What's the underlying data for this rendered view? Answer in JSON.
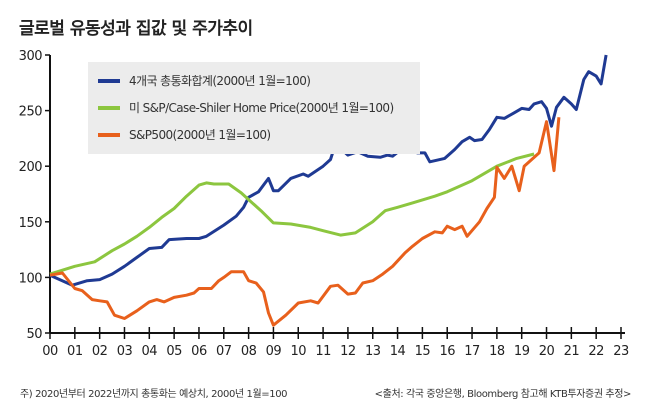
{
  "title": "글로벌 유동성과 집값 및 주가추이",
  "footnote": "주) 2020년부터 2022년까지 총통화는 예상치, 2000년 1월=100",
  "source": "<출처: 각국 중앙은행, Bloomberg 참고해 KTB투자증권 추정>",
  "chart_data": {
    "type": "line",
    "title": "글로벌 유동성과 집값 및 주가추이",
    "xlabel": "",
    "ylabel": "",
    "xlim": [
      0,
      23
    ],
    "ylim": [
      50,
      300
    ],
    "x_ticks": [
      "00",
      "01",
      "02",
      "03",
      "04",
      "05",
      "06",
      "07",
      "08",
      "09",
      "10",
      "11",
      "12",
      "13",
      "14",
      "15",
      "16",
      "17",
      "18",
      "19",
      "20",
      "21",
      "22",
      "23"
    ],
    "y_ticks": [
      50,
      100,
      150,
      200,
      250,
      300
    ],
    "legend_position": "top-left",
    "grid": false,
    "series": [
      {
        "name": "4개국 총통화합계(2000년 1월=100)",
        "color": "#1f3a93",
        "points": [
          [
            0,
            102
          ],
          [
            0.9,
            93
          ],
          [
            1.5,
            97
          ],
          [
            2,
            98
          ],
          [
            2.5,
            103
          ],
          [
            3,
            110
          ],
          [
            3.5,
            118
          ],
          [
            4,
            126
          ],
          [
            4.5,
            127
          ],
          [
            4.8,
            134
          ],
          [
            5.5,
            135
          ],
          [
            6,
            135
          ],
          [
            6.3,
            137
          ],
          [
            7,
            147
          ],
          [
            7.5,
            155
          ],
          [
            7.8,
            163
          ],
          [
            8,
            172
          ],
          [
            8.4,
            177
          ],
          [
            8.8,
            189
          ],
          [
            9,
            178
          ],
          [
            9.2,
            178
          ],
          [
            9.7,
            189
          ],
          [
            10.2,
            193
          ],
          [
            10.4,
            191
          ],
          [
            11,
            200
          ],
          [
            11.3,
            206
          ],
          [
            11.4,
            213
          ],
          [
            11.7,
            216
          ],
          [
            12,
            210
          ],
          [
            12.4,
            213
          ],
          [
            12.8,
            209
          ],
          [
            13.3,
            208
          ],
          [
            13.6,
            210
          ],
          [
            13.8,
            209
          ],
          [
            14.2,
            216
          ],
          [
            14.5,
            217
          ],
          [
            14.8,
            212
          ],
          [
            15.1,
            212
          ],
          [
            15.3,
            204
          ],
          [
            15.9,
            207
          ],
          [
            16.3,
            215
          ],
          [
            16.6,
            222
          ],
          [
            16.9,
            226
          ],
          [
            17.1,
            223
          ],
          [
            17.4,
            224
          ],
          [
            17.7,
            233
          ],
          [
            18,
            244
          ],
          [
            18.3,
            243
          ],
          [
            18.7,
            248
          ],
          [
            19,
            252
          ],
          [
            19.3,
            251
          ],
          [
            19.5,
            256
          ],
          [
            19.8,
            258
          ],
          [
            20,
            252
          ],
          [
            20.2,
            236
          ],
          [
            20.4,
            253
          ],
          [
            20.7,
            262
          ],
          [
            21,
            256
          ],
          [
            21.2,
            251
          ],
          [
            21.5,
            278
          ],
          [
            21.7,
            285
          ],
          [
            22,
            281
          ],
          [
            22.2,
            274
          ],
          [
            22.4,
            300
          ]
        ]
      },
      {
        "name": "미 S&P/Case-Shiler Home Price(2000년 1월=100)",
        "color": "#8cc63f",
        "points": [
          [
            0,
            103
          ],
          [
            1,
            110
          ],
          [
            1.8,
            114
          ],
          [
            2.5,
            124
          ],
          [
            3,
            130
          ],
          [
            3.5,
            137
          ],
          [
            4,
            145
          ],
          [
            4.5,
            154
          ],
          [
            5,
            162
          ],
          [
            5.5,
            173
          ],
          [
            6,
            183
          ],
          [
            6.3,
            185
          ],
          [
            6.6,
            184
          ],
          [
            7.2,
            184
          ],
          [
            7.7,
            176
          ],
          [
            8,
            170
          ],
          [
            8.5,
            160
          ],
          [
            9,
            149
          ],
          [
            9.7,
            148
          ],
          [
            10.5,
            145
          ],
          [
            11,
            142
          ],
          [
            11.7,
            138
          ],
          [
            12.3,
            140
          ],
          [
            13,
            150
          ],
          [
            13.5,
            160
          ],
          [
            14,
            163
          ],
          [
            14.6,
            167
          ],
          [
            15.5,
            173
          ],
          [
            16,
            177
          ],
          [
            17,
            187
          ],
          [
            18,
            200
          ],
          [
            18.8,
            207
          ],
          [
            19.5,
            211
          ]
        ]
      },
      {
        "name": "S&P500(2000년 1월=100)",
        "color": "#e8601c",
        "points": [
          [
            0,
            102
          ],
          [
            0.5,
            104
          ],
          [
            1,
            90
          ],
          [
            1.3,
            88
          ],
          [
            1.7,
            80
          ],
          [
            2,
            79
          ],
          [
            2.3,
            78
          ],
          [
            2.6,
            66
          ],
          [
            3,
            63
          ],
          [
            3.5,
            70
          ],
          [
            4,
            78
          ],
          [
            4.3,
            80
          ],
          [
            4.6,
            78
          ],
          [
            5,
            82
          ],
          [
            5.5,
            84
          ],
          [
            5.8,
            86
          ],
          [
            6,
            90
          ],
          [
            6.5,
            90
          ],
          [
            6.8,
            97
          ],
          [
            7,
            100
          ],
          [
            7.3,
            105
          ],
          [
            7.8,
            105
          ],
          [
            8,
            97
          ],
          [
            8.3,
            95
          ],
          [
            8.6,
            87
          ],
          [
            8.8,
            68
          ],
          [
            9,
            57
          ],
          [
            9.5,
            66
          ],
          [
            10,
            77
          ],
          [
            10.5,
            79
          ],
          [
            10.8,
            77
          ],
          [
            11.3,
            92
          ],
          [
            11.6,
            93
          ],
          [
            12,
            85
          ],
          [
            12.3,
            86
          ],
          [
            12.6,
            95
          ],
          [
            13,
            97
          ],
          [
            13.4,
            103
          ],
          [
            13.8,
            110
          ],
          [
            14.3,
            122
          ],
          [
            14.6,
            128
          ],
          [
            15,
            135
          ],
          [
            15.5,
            141
          ],
          [
            15.8,
            140
          ],
          [
            16,
            146
          ],
          [
            16.3,
            143
          ],
          [
            16.6,
            146
          ],
          [
            16.8,
            137
          ],
          [
            17.3,
            150
          ],
          [
            17.6,
            162
          ],
          [
            17.9,
            172
          ],
          [
            18,
            199
          ],
          [
            18.3,
            189
          ],
          [
            18.6,
            200
          ],
          [
            18.9,
            178
          ],
          [
            19.1,
            200
          ],
          [
            19.7,
            212
          ],
          [
            20,
            240
          ],
          [
            20.3,
            196
          ],
          [
            20.5,
            244
          ]
        ]
      }
    ]
  }
}
